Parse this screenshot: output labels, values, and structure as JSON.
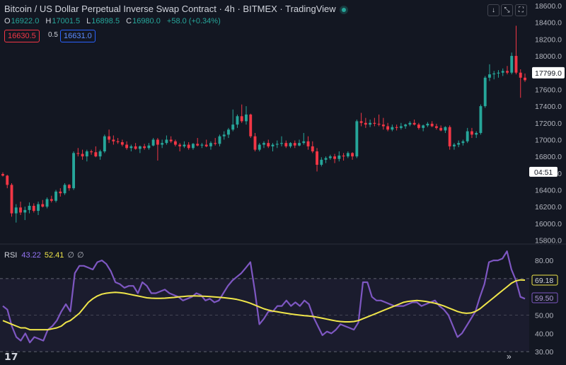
{
  "header": {
    "title": "Bitcoin / US Dollar Perpetual Inverse Swap Contract · 4h · BITMEX · TradingView",
    "ohlc": {
      "o_label": "O",
      "o": "16922.0",
      "h_label": "H",
      "h": "17001.5",
      "l_label": "L",
      "l": "16898.5",
      "c_label": "C",
      "c": "16980.0",
      "change": "+58.0 (+0.34%)"
    },
    "bid": "16630.5",
    "spread": "0.5",
    "ask": "16631.0"
  },
  "toolbar": {
    "down_icon": "arrow-down-icon",
    "collapse_icon": "collapse-icon",
    "fullscreen_icon": "fullscreen-icon"
  },
  "countdown": "04:51",
  "rsi_legend": {
    "label": "RSI",
    "rsi_value": "43.22",
    "ma_value": "52.41",
    "sym1": "∅",
    "sym2": "∅"
  },
  "colors": {
    "up": "#26a69a",
    "down": "#f23645",
    "rsi": "#7e57c2",
    "rsi_ma": "#f0e64a",
    "background": "#131722"
  },
  "chart_data": [
    {
      "type": "candlestick",
      "title": "Bitcoin / US Dollar Perpetual Inverse Swap Contract · 4h · BITMEX",
      "ylim": [
        15800,
        18600
      ],
      "yticks": [
        15800,
        16000,
        16200,
        16400,
        16600,
        16800,
        17000,
        17200,
        17400,
        17600,
        17800,
        18000,
        18200,
        18400,
        18600
      ],
      "last_price": "17799.0",
      "candles": [
        [
          16590,
          16610,
          16560,
          16570
        ],
        [
          16570,
          16580,
          16420,
          16460
        ],
        [
          16460,
          16480,
          16080,
          16120
        ],
        [
          16120,
          16230,
          16010,
          16190
        ],
        [
          16190,
          16260,
          16100,
          16130
        ],
        [
          16130,
          16200,
          16040,
          16160
        ],
        [
          16160,
          16250,
          16120,
          16210
        ],
        [
          16210,
          16240,
          16130,
          16150
        ],
        [
          16150,
          16260,
          16100,
          16230
        ],
        [
          16230,
          16280,
          16190,
          16200
        ],
        [
          16200,
          16310,
          16180,
          16290
        ],
        [
          16290,
          16330,
          16250,
          16270
        ],
        [
          16270,
          16400,
          16250,
          16380
        ],
        [
          16380,
          16420,
          16320,
          16360
        ],
        [
          16360,
          16480,
          16340,
          16460
        ],
        [
          16460,
          16470,
          16390,
          16420
        ],
        [
          16420,
          16860,
          16400,
          16840
        ],
        [
          16840,
          16900,
          16800,
          16830
        ],
        [
          16830,
          16880,
          16760,
          16800
        ],
        [
          16800,
          16880,
          16740,
          16860
        ],
        [
          16860,
          16880,
          16820,
          16850
        ],
        [
          16850,
          16920,
          16790,
          16800
        ],
        [
          16800,
          16880,
          16760,
          16860
        ],
        [
          16860,
          17060,
          16840,
          17040
        ],
        [
          17040,
          17120,
          16960,
          17000
        ],
        [
          17000,
          17050,
          16940,
          16980
        ],
        [
          16980,
          17020,
          16950,
          16970
        ],
        [
          16970,
          17000,
          16920,
          16940
        ],
        [
          16940,
          16980,
          16880,
          16900
        ],
        [
          16900,
          16940,
          16860,
          16920
        ],
        [
          16920,
          16960,
          16880,
          16890
        ],
        [
          16890,
          16930,
          16840,
          16920
        ],
        [
          16920,
          16950,
          16880,
          16900
        ],
        [
          16900,
          16960,
          16880,
          16930
        ],
        [
          16930,
          17020,
          16920,
          17000
        ],
        [
          17000,
          17020,
          16750,
          16940
        ],
        [
          16940,
          17000,
          16900,
          16960
        ],
        [
          16960,
          17050,
          16940,
          17000
        ],
        [
          17000,
          17040,
          16960,
          16980
        ],
        [
          16980,
          17000,
          16920,
          16940
        ],
        [
          16940,
          16960,
          16860,
          16920
        ],
        [
          16920,
          16980,
          16900,
          16940
        ],
        [
          16940,
          16970,
          16880,
          16900
        ],
        [
          16900,
          16960,
          16880,
          16950
        ],
        [
          16950,
          17020,
          16920,
          16930
        ],
        [
          16930,
          16960,
          16900,
          16940
        ],
        [
          16940,
          17000,
          16910,
          16920
        ],
        [
          16920,
          16980,
          16880,
          16960
        ],
        [
          16960,
          17020,
          16930,
          16950
        ],
        [
          16950,
          17060,
          16920,
          17040
        ],
        [
          17040,
          17100,
          17000,
          17060
        ],
        [
          17060,
          17140,
          17020,
          17120
        ],
        [
          17120,
          17360,
          17100,
          17180
        ],
        [
          17180,
          17300,
          17140,
          17280
        ],
        [
          17280,
          17420,
          17200,
          17220
        ],
        [
          17220,
          17400,
          17180,
          17300
        ],
        [
          17300,
          17310,
          17020,
          17040
        ],
        [
          17040,
          17080,
          16860,
          16880
        ],
        [
          16880,
          16960,
          16860,
          16940
        ],
        [
          16940,
          16980,
          16900,
          16960
        ],
        [
          16960,
          17000,
          16900,
          16920
        ],
        [
          16920,
          16960,
          16860,
          16940
        ],
        [
          16940,
          16990,
          16900,
          16950
        ],
        [
          16950,
          17040,
          16920,
          16960
        ],
        [
          16960,
          16990,
          16900,
          16920
        ],
        [
          16920,
          16970,
          16900,
          16960
        ],
        [
          16960,
          16990,
          16900,
          16930
        ],
        [
          16930,
          17000,
          16920,
          16960
        ],
        [
          16960,
          17080,
          16940,
          16980
        ],
        [
          16980,
          17040,
          16880,
          16920
        ],
        [
          16920,
          16980,
          16840,
          16860
        ],
        [
          16860,
          16900,
          16620,
          16700
        ],
        [
          16700,
          16790,
          16680,
          16760
        ],
        [
          16760,
          16800,
          16720,
          16780
        ],
        [
          16780,
          16820,
          16760,
          16800
        ],
        [
          16800,
          16830,
          16720,
          16770
        ],
        [
          16770,
          16860,
          16740,
          16810
        ],
        [
          16810,
          16840,
          16750,
          16800
        ],
        [
          16800,
          16860,
          16780,
          16840
        ],
        [
          16840,
          16850,
          16760,
          16800
        ],
        [
          16800,
          17240,
          16780,
          17220
        ],
        [
          17220,
          17320,
          17160,
          17200
        ],
        [
          17200,
          17260,
          17140,
          17180
        ],
        [
          17180,
          17240,
          17150,
          17200
        ],
        [
          17200,
          17260,
          17160,
          17190
        ],
        [
          17190,
          17300,
          17160,
          17180
        ],
        [
          17180,
          17260,
          17120,
          17160
        ],
        [
          17160,
          17200,
          17100,
          17120
        ],
        [
          17120,
          17180,
          17100,
          17150
        ],
        [
          17150,
          17180,
          17110,
          17140
        ],
        [
          17140,
          17200,
          17120,
          17160
        ],
        [
          17160,
          17190,
          17130,
          17180
        ],
        [
          17180,
          17220,
          17160,
          17200
        ],
        [
          17200,
          17240,
          17170,
          17180
        ],
        [
          17180,
          17200,
          17120,
          17140
        ],
        [
          17140,
          17180,
          17100,
          17170
        ],
        [
          17170,
          17210,
          17150,
          17190
        ],
        [
          17190,
          17220,
          17150,
          17160
        ],
        [
          17160,
          17190,
          17120,
          17140
        ],
        [
          17140,
          17170,
          17100,
          17110
        ],
        [
          17110,
          17160,
          17080,
          17150
        ],
        [
          17150,
          17170,
          16880,
          16920
        ],
        [
          16920,
          16960,
          16880,
          16940
        ],
        [
          16940,
          16990,
          16910,
          16960
        ],
        [
          16960,
          17000,
          16930,
          16980
        ],
        [
          16980,
          17140,
          16960,
          17100
        ],
        [
          17100,
          17140,
          17020,
          17060
        ],
        [
          17060,
          17100,
          17020,
          17080
        ],
        [
          17080,
          17420,
          17060,
          17400
        ],
        [
          17400,
          17760,
          17380,
          17740
        ],
        [
          17740,
          17900,
          17700,
          17780
        ],
        [
          17780,
          17820,
          17720,
          17790
        ],
        [
          17790,
          17830,
          17740,
          17800
        ],
        [
          17800,
          17850,
          17760,
          17820
        ],
        [
          17820,
          17880,
          17780,
          17800
        ],
        [
          17800,
          18040,
          17780,
          18000
        ],
        [
          18000,
          18360,
          17780,
          17800
        ],
        [
          17800,
          17840,
          17500,
          17740
        ],
        [
          17740,
          17790,
          17690,
          17710
        ]
      ]
    },
    {
      "type": "line",
      "title": "RSI",
      "ylim": [
        25,
        87
      ],
      "yticks": [
        30,
        40,
        50,
        60,
        70,
        80
      ],
      "bands": [
        30,
        70
      ],
      "current_rsi": "59.50",
      "current_ma": "69.18",
      "series": [
        {
          "name": "RSI",
          "values": [
            55,
            53,
            44,
            38,
            36,
            40,
            35,
            38,
            37,
            36,
            42,
            44,
            47,
            52,
            56,
            52,
            73,
            77,
            77,
            76,
            75,
            79,
            80,
            78,
            74,
            68,
            67,
            65,
            66,
            66,
            62,
            68,
            66,
            62,
            62,
            63,
            64,
            62,
            61,
            60,
            58,
            59,
            60,
            62,
            61,
            58,
            59,
            57,
            58,
            62,
            66,
            69,
            71,
            73,
            76,
            79,
            63,
            45,
            48,
            52,
            52,
            55,
            55,
            58,
            55,
            57,
            55,
            58,
            56,
            49,
            44,
            39,
            41,
            40,
            42,
            45,
            44,
            43,
            42,
            46,
            68,
            68,
            60,
            58,
            58,
            57,
            56,
            55,
            55,
            55,
            56,
            57,
            57,
            55,
            56,
            57,
            58,
            55,
            53,
            50,
            44,
            38,
            40,
            44,
            48,
            52,
            60,
            67,
            79,
            80,
            80,
            81,
            85,
            75,
            69,
            60,
            59
          ]
        },
        {
          "name": "MA",
          "values": [
            47,
            46,
            45,
            44,
            43,
            43,
            42,
            42,
            42,
            42,
            42,
            42.5,
            43,
            44,
            46,
            47,
            49,
            51,
            54,
            57,
            59,
            60.5,
            61.5,
            62,
            62.3,
            62.5,
            62.3,
            62,
            61.5,
            61,
            60.5,
            60,
            59.5,
            59.3,
            59.2,
            59.2,
            59.3,
            59.5,
            59.7,
            60,
            60.2,
            60.4,
            60.5,
            60.5,
            60.4,
            60.3,
            60.2,
            60,
            59.8,
            59.6,
            59.3,
            59,
            58.6,
            58,
            57.3,
            56.5,
            55.5,
            54.5,
            53.5,
            52.8,
            52.2,
            51.8,
            51.4,
            51,
            50.6,
            50.3,
            50,
            49.7,
            49.5,
            49.2,
            48.8,
            48.3,
            47.8,
            47.3,
            46.8,
            46.5,
            46.3,
            46.3,
            46.5,
            47,
            48,
            49,
            50,
            51,
            52,
            53,
            54,
            55,
            56,
            57,
            57.5,
            57.8,
            58,
            57.8,
            57.5,
            57,
            56.5,
            55.8,
            55,
            54,
            53,
            52,
            51.3,
            51,
            51.2,
            52,
            53.5,
            55.5,
            57.5,
            59.5,
            61.5,
            63.5,
            65.5,
            67.5,
            68.8,
            69.3,
            69.18
          ]
        }
      ]
    }
  ]
}
